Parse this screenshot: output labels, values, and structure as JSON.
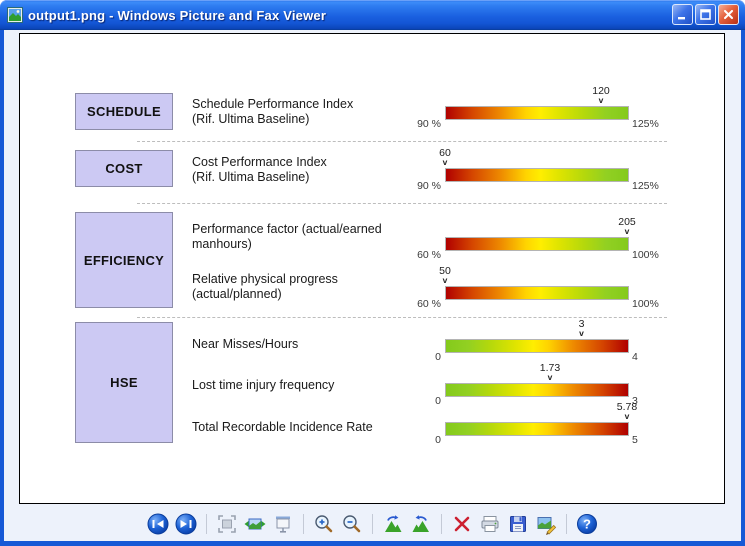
{
  "window": {
    "title": "output1.png - Windows Picture and Fax Viewer",
    "controls": [
      "minimize",
      "maximize",
      "close"
    ]
  },
  "chart_data": {
    "type": "bullet",
    "title": "",
    "sections": [
      {
        "category": "SCHEDULE",
        "metrics": [
          {
            "label": "Schedule Performance Index\n(Rif. Ultima Baseline)",
            "min": 90,
            "max": 125,
            "min_label": "90 %",
            "max_label": "125%",
            "value": 120,
            "value_label": "120",
            "scale": "red-to-green"
          }
        ]
      },
      {
        "category": "COST",
        "metrics": [
          {
            "label": "Cost Performance Index\n(Rif. Ultima Baseline)",
            "min": 90,
            "max": 125,
            "min_label": "90 %",
            "max_label": "125%",
            "value": 60,
            "value_label": "60",
            "scale": "red-to-green"
          }
        ]
      },
      {
        "category": "EFFICIENCY",
        "metrics": [
          {
            "label": "Performance factor (actual/earned\nmanhours)",
            "min": 60,
            "max": 100,
            "min_label": "60 %",
            "max_label": "100%",
            "value": 205,
            "value_label": "205",
            "scale": "red-to-green"
          },
          {
            "label": "Relative physical progress\n(actual/planned)",
            "min": 60,
            "max": 100,
            "min_label": "60 %",
            "max_label": "100%",
            "value": 50,
            "value_label": "50",
            "scale": "red-to-green"
          }
        ]
      },
      {
        "category": "HSE",
        "metrics": [
          {
            "label": "Near Misses/Hours",
            "min": 0,
            "max": 4,
            "min_label": "0",
            "max_label": "4",
            "value": 3,
            "value_label": "3",
            "scale": "green-to-red"
          },
          {
            "label": "Lost time injury frequency",
            "min": 0,
            "max": 3,
            "min_label": "0",
            "max_label": "3",
            "value": 1.73,
            "value_label": "1.73",
            "scale": "green-to-red"
          },
          {
            "label": "Total Recordable Incidence Rate",
            "min": 0,
            "max": 5,
            "min_label": "0",
            "max_label": "5",
            "value": 5.78,
            "value_label": "5.78",
            "scale": "green-to-red"
          }
        ]
      }
    ]
  },
  "toolbar": {
    "icons": [
      "previous-image",
      "next-image",
      "best-fit",
      "actual-size",
      "start-slideshow",
      "zoom-in",
      "zoom-out",
      "rotate-clockwise",
      "rotate-counterclockwise",
      "delete",
      "print",
      "save",
      "edit",
      "help"
    ]
  },
  "colors": {
    "titlebar_blue": "#1e62e0",
    "window_border": "#1659d6",
    "category_box_fill": "#ccc9f3",
    "category_box_border": "#8c8ca8",
    "bar_red": "#b00000",
    "bar_yellow": "#ffee00",
    "bar_green": "#84ca1c",
    "close_button_red": "#d9431f",
    "toolbar_bg": "#edf2fb"
  }
}
